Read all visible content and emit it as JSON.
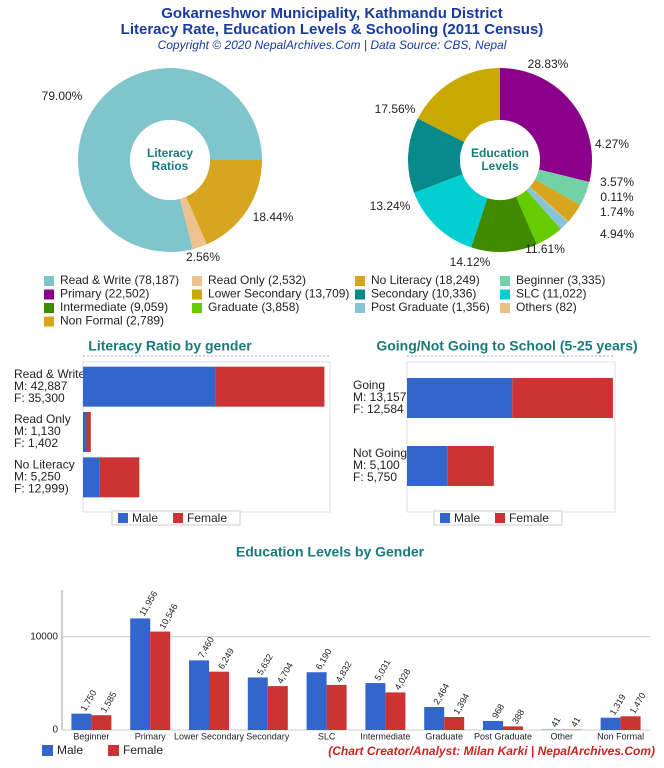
{
  "header": {
    "title": "Gokarneshwor Municipality, Kathmandu District",
    "subtitle": "Literacy Rate, Education Levels & Schooling (2011 Census)",
    "copyright": "Copyright © 2020 NepalArchives.Com | Data Source: CBS, Nepal"
  },
  "chart_data": [
    {
      "type": "pie",
      "center_label": [
        "Literacy",
        "Ratios"
      ],
      "categories": [
        "Read & Write (78,187)",
        "Read Only (2,532)",
        "No Literacy (18,249)"
      ],
      "values": [
        79.0,
        2.56,
        18.44
      ],
      "value_labels": [
        "79.00%",
        "2.56%",
        "18.44%"
      ],
      "colors": [
        "#80c4cc",
        "#eec28e",
        "#d8a520"
      ]
    },
    {
      "type": "pie",
      "center_label": [
        "Education",
        "Levels"
      ],
      "categories": [
        "Primary (22,502)",
        "Beginner (3,335)",
        "Non Formal (2,789)",
        "Others (82)",
        "Post Graduate (1,356)",
        "Graduate (3,858)",
        "Intermediate (9,059)",
        "SLC (11,022)",
        "Secondary (10,336)",
        "Lower Secondary (13,709)"
      ],
      "values": [
        28.83,
        4.27,
        3.57,
        0.11,
        1.74,
        4.94,
        11.61,
        14.12,
        13.24,
        17.56
      ],
      "value_labels": [
        "28.83%",
        "4.27%",
        "3.57%",
        "0.11%",
        "1.74%",
        "4.94%",
        "11.61%",
        "14.12%",
        "13.24%",
        "17.56%"
      ],
      "colors": [
        "#8b008b",
        "#73d1a6",
        "#d8a520",
        "#e8c08a",
        "#88c4d8",
        "#66cc00",
        "#408a00",
        "#00ced1",
        "#088a8a",
        "#c9a800"
      ]
    },
    {
      "type": "hbar",
      "title": "Literacy Ratio by gender",
      "categories": [
        [
          "Read & Write",
          "M: 42,887",
          "F: 35,300"
        ],
        [
          "Read Only",
          "M: 1,130",
          "F: 1,402"
        ],
        [
          "No Literacy",
          "M: 5,250",
          "F: 12,999)"
        ]
      ],
      "series": [
        {
          "name": "Male",
          "color": "#3366cc",
          "values": [
            42887,
            1130,
            5250
          ]
        },
        {
          "name": "Female",
          "color": "#cc3333",
          "values": [
            35300,
            1402,
            12999
          ]
        }
      ],
      "xlim": [
        0,
        80000
      ]
    },
    {
      "type": "hbar",
      "title": "Going/Not Going to School (5-25 years)",
      "categories": [
        [
          "Going",
          "M: 13,157",
          "F: 12,584"
        ],
        [
          "Not Going",
          "M: 5,100",
          "F: 5,750"
        ]
      ],
      "series": [
        {
          "name": "Male",
          "color": "#3366cc",
          "values": [
            13157,
            5100
          ]
        },
        {
          "name": "Female",
          "color": "#cc3333",
          "values": [
            12584,
            5750
          ]
        }
      ],
      "xlim": [
        0,
        26000
      ]
    },
    {
      "type": "bar",
      "title": "Education Levels by Gender",
      "categories": [
        "Beginner",
        "Primary",
        "Lower Secondary",
        "Secondary",
        "SLC",
        "Intermediate",
        "Graduate",
        "Post Graduate",
        "Other",
        "Non Formal"
      ],
      "series": [
        {
          "name": "Male",
          "color": "#3366cc",
          "values": [
            1750,
            11956,
            7460,
            5632,
            6190,
            5031,
            2464,
            968,
            41,
            1319
          ],
          "value_labels": [
            "1,750",
            "11,956",
            "7,460",
            "5,632",
            "6,190",
            "5,031",
            "2,464",
            "968",
            "41",
            "1,319"
          ]
        },
        {
          "name": "Female",
          "color": "#cc3333",
          "values": [
            1585,
            10546,
            6249,
            4704,
            4832,
            4028,
            1394,
            388,
            41,
            1470
          ],
          "value_labels": [
            "1,585",
            "10,546",
            "6,249",
            "4,704",
            "4,832",
            "4,028",
            "1,394",
            "388",
            "41",
            "1,470"
          ]
        }
      ],
      "ylim": [
        0,
        15000
      ],
      "yticks": [
        0,
        10000
      ]
    }
  ],
  "footer": "(Chart Creator/Analyst: Milan Karki | NepalArchives.Com)"
}
